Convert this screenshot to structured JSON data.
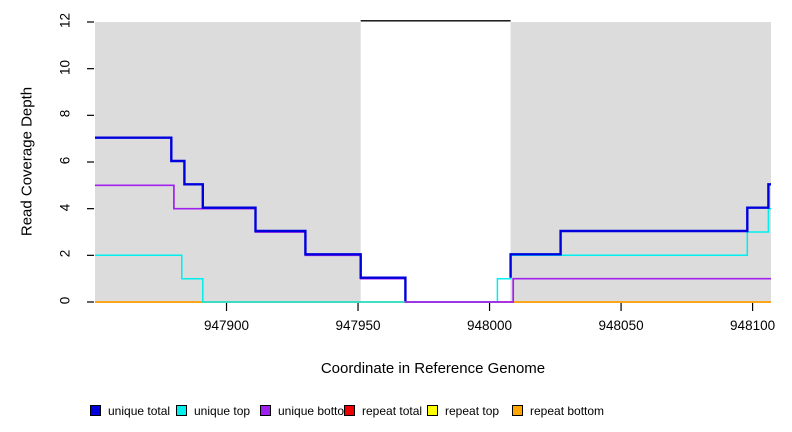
{
  "chart_data": {
    "type": "line",
    "subtype": "step",
    "title": "",
    "xlabel": "Coordinate in Reference Genome",
    "ylabel": "Read Coverage Depth",
    "xlim": [
      947850,
      948107
    ],
    "ylim": [
      0,
      12
    ],
    "x_ticks": [
      947900,
      947950,
      948000,
      948050,
      948100
    ],
    "y_ticks": [
      0,
      2,
      4,
      6,
      8,
      10,
      12
    ],
    "grid": false,
    "background_color": "#FFFFFF",
    "shaded_bands": [
      {
        "x0": 947850,
        "x1": 947951,
        "color": "#DCDCDC"
      },
      {
        "x0": 948008,
        "x1": 948107,
        "color": "#DCDCDC"
      }
    ],
    "top_line": {
      "y": 12,
      "x0": 947951,
      "x1": 948008,
      "color": "#000000"
    },
    "series": [
      {
        "name": "repeat top",
        "color": "#FFFF00",
        "width": 1.2,
        "dy": 0,
        "segments": [
          [
            [
              947850,
              0
            ],
            [
              948107,
              0
            ]
          ]
        ]
      },
      {
        "name": "repeat total",
        "color": "#EE0000",
        "width": 1.2,
        "dy": 0,
        "segments": [
          [
            [
              947850,
              0
            ],
            [
              948107,
              0
            ]
          ]
        ]
      },
      {
        "name": "repeat bottom",
        "color": "#FFA500",
        "width": 1.5,
        "dy": 0,
        "segments": [
          [
            [
              947850,
              0
            ],
            [
              948107,
              0
            ]
          ]
        ]
      },
      {
        "name": "unique top",
        "color": "#00EEEE",
        "width": 1.5,
        "dy": 0,
        "segments": [
          [
            [
              947850,
              2
            ],
            [
              947883,
              1
            ],
            [
              947891,
              0
            ],
            [
              948003,
              1
            ],
            [
              948008,
              2
            ],
            [
              948098,
              3
            ],
            [
              948106,
              4
            ],
            [
              948107,
              4
            ]
          ]
        ]
      },
      {
        "name": "unique bottom",
        "color": "#A020F0",
        "width": 1.7,
        "dy": 0,
        "segments": [
          [
            [
              947850,
              5
            ],
            [
              947880,
              4
            ],
            [
              947911,
              3
            ],
            [
              947930,
              2
            ],
            [
              947951,
              1
            ],
            [
              947968,
              0
            ],
            [
              948009,
              1
            ],
            [
              948107,
              1
            ]
          ]
        ]
      },
      {
        "name": "unique total",
        "color": "#0000DD",
        "width": 2.4,
        "dy": -1,
        "segments": [
          [
            [
              947850,
              7
            ],
            [
              947879,
              6
            ],
            [
              947884,
              5
            ],
            [
              947891,
              4
            ],
            [
              947911,
              3
            ],
            [
              947930,
              2
            ],
            [
              947951,
              1
            ],
            [
              947968,
              0
            ]
          ],
          [
            [
              948008,
              1
            ],
            [
              948008,
              2
            ],
            [
              948027,
              3
            ],
            [
              948098,
              4
            ],
            [
              948106,
              5
            ],
            [
              948107,
              5
            ]
          ]
        ]
      }
    ],
    "legend": {
      "position": "bottom",
      "items": [
        {
          "label": "unique total",
          "color": "#0000DD"
        },
        {
          "label": "unique top",
          "color": "#00EEEE"
        },
        {
          "label": "unique bottom",
          "color": "#A020F0"
        },
        {
          "label": "repeat total",
          "color": "#EE0000"
        },
        {
          "label": "repeat top",
          "color": "#FFFF00"
        },
        {
          "label": "repeat bottom",
          "color": "#FFA500"
        }
      ]
    }
  }
}
